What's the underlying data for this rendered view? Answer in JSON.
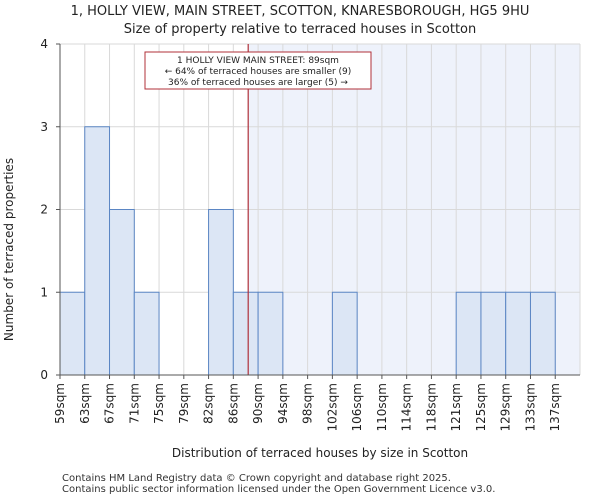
{
  "chart_data": {
    "type": "bar",
    "title": "1, HOLLY VIEW, MAIN STREET, SCOTTON, KNARESBOROUGH, HG5 9HU",
    "subtitle": "Size of property relative to terraced houses in Scotton",
    "xlabel": "Distribution of terraced houses by size in Scotton",
    "ylabel": "Number of terraced properties",
    "categories": [
      "59sqm",
      "63sqm",
      "67sqm",
      "71sqm",
      "75sqm",
      "79sqm",
      "82sqm",
      "86sqm",
      "90sqm",
      "94sqm",
      "98sqm",
      "102sqm",
      "106sqm",
      "110sqm",
      "114sqm",
      "118sqm",
      "121sqm",
      "125sqm",
      "129sqm",
      "133sqm",
      "137sqm"
    ],
    "values": [
      1,
      3,
      2,
      1,
      0,
      0,
      2,
      1,
      1,
      0,
      0,
      1,
      0,
      0,
      0,
      0,
      1,
      1,
      1,
      1,
      0
    ],
    "yticks": [
      0,
      1,
      2,
      3,
      4
    ],
    "ylim": [
      0,
      4
    ],
    "grid": true,
    "marker": {
      "position_index": 7.6,
      "label": "89sqm"
    },
    "annotation": {
      "line1": "1 HOLLY VIEW MAIN STREET: 89sqm",
      "line2": "← 64% of terraced houses are smaller (9)",
      "line3": "36% of terraced houses are larger (5) →"
    },
    "colors": {
      "bar": "#dce6f5",
      "bar_edge": "#5b86c4",
      "marker": "#b0303a",
      "shade": "#eef2fb"
    }
  },
  "footer": {
    "line1": "Contains HM Land Registry data © Crown copyright and database right 2025.",
    "line2": "Contains public sector information licensed under the Open Government Licence v3.0."
  }
}
